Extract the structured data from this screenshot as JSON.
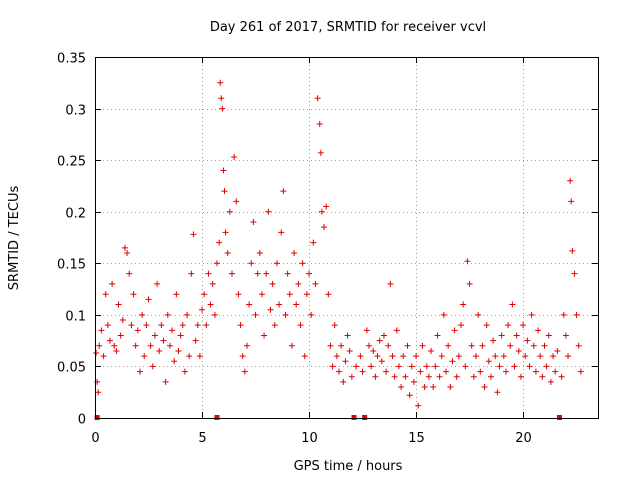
{
  "chart_data": {
    "type": "scatter",
    "title": "Day 261 of 2017, SRMTID for receiver vcvl",
    "xlabel": "GPS time / hours",
    "ylabel": "SRMTID / TECUs",
    "xlim": [
      0,
      23.5
    ],
    "ylim": [
      0,
      0.35
    ],
    "x_ticks": [
      0,
      5,
      10,
      15,
      20
    ],
    "x_tick_labels": [
      "0",
      "5",
      "10",
      "15",
      "20"
    ],
    "y_ticks": [
      0,
      0.05,
      0.1,
      0.15,
      0.2,
      0.25,
      0.3,
      0.35
    ],
    "y_tick_labels": [
      "0",
      "0.05",
      "0.1",
      "0.15",
      "0.2",
      "0.25",
      "0.3",
      "0.35"
    ],
    "grid": true,
    "marker": "+",
    "series_color": "#e00000",
    "gap_markers_x": [
      0.1,
      5.7,
      12.1,
      12.6,
      21.7
    ],
    "series": [
      {
        "name": "SRMTID",
        "points": [
          [
            0.05,
            0.063
          ],
          [
            0.1,
            0.035
          ],
          [
            0.15,
            0.025
          ],
          [
            0.2,
            0.07
          ],
          [
            0.3,
            0.085
          ],
          [
            0.4,
            0.06
          ],
          [
            0.5,
            0.12
          ],
          [
            0.6,
            0.09
          ],
          [
            0.7,
            0.075
          ],
          [
            0.8,
            0.13
          ],
          [
            0.9,
            0.07
          ],
          [
            1.0,
            0.065
          ],
          [
            1.1,
            0.11
          ],
          [
            1.2,
            0.08
          ],
          [
            1.3,
            0.095
          ],
          [
            1.4,
            0.165
          ],
          [
            1.5,
            0.16
          ],
          [
            1.6,
            0.14
          ],
          [
            1.7,
            0.09
          ],
          [
            1.8,
            0.12
          ],
          [
            1.9,
            0.07
          ],
          [
            2.0,
            0.085
          ],
          [
            2.1,
            0.045
          ],
          [
            2.2,
            0.1
          ],
          [
            2.3,
            0.06
          ],
          [
            2.4,
            0.09
          ],
          [
            2.5,
            0.115
          ],
          [
            2.6,
            0.07
          ],
          [
            2.7,
            0.05
          ],
          [
            2.8,
            0.08
          ],
          [
            2.9,
            0.13
          ],
          [
            3.0,
            0.065
          ],
          [
            3.1,
            0.09
          ],
          [
            3.2,
            0.075
          ],
          [
            3.3,
            0.035
          ],
          [
            3.4,
            0.1
          ],
          [
            3.5,
            0.07
          ],
          [
            3.6,
            0.085
          ],
          [
            3.7,
            0.055
          ],
          [
            3.8,
            0.12
          ],
          [
            3.9,
            0.065
          ],
          [
            4.0,
            0.08
          ],
          [
            4.1,
            0.09
          ],
          [
            4.2,
            0.045
          ],
          [
            4.3,
            0.1
          ],
          [
            4.4,
            0.06
          ],
          [
            4.5,
            0.14
          ],
          [
            4.6,
            0.178
          ],
          [
            4.7,
            0.075
          ],
          [
            4.8,
            0.09
          ],
          [
            4.9,
            0.06
          ],
          [
            5.0,
            0.105
          ],
          [
            5.1,
            0.12
          ],
          [
            5.2,
            0.09
          ],
          [
            5.3,
            0.14
          ],
          [
            5.4,
            0.11
          ],
          [
            5.5,
            0.13
          ],
          [
            5.6,
            0.1
          ],
          [
            5.7,
            0.15
          ],
          [
            5.8,
            0.17
          ],
          [
            5.85,
            0.325
          ],
          [
            5.9,
            0.31
          ],
          [
            5.95,
            0.3
          ],
          [
            6.0,
            0.24
          ],
          [
            6.05,
            0.22
          ],
          [
            6.1,
            0.18
          ],
          [
            6.2,
            0.16
          ],
          [
            6.3,
            0.2
          ],
          [
            6.4,
            0.14
          ],
          [
            6.5,
            0.253
          ],
          [
            6.6,
            0.21
          ],
          [
            6.7,
            0.12
          ],
          [
            6.8,
            0.09
          ],
          [
            6.9,
            0.06
          ],
          [
            7.0,
            0.045
          ],
          [
            7.1,
            0.07
          ],
          [
            7.2,
            0.11
          ],
          [
            7.3,
            0.15
          ],
          [
            7.4,
            0.19
          ],
          [
            7.5,
            0.1
          ],
          [
            7.6,
            0.14
          ],
          [
            7.7,
            0.16
          ],
          [
            7.8,
            0.12
          ],
          [
            7.9,
            0.08
          ],
          [
            8.0,
            0.14
          ],
          [
            8.1,
            0.2
          ],
          [
            8.2,
            0.105
          ],
          [
            8.3,
            0.13
          ],
          [
            8.4,
            0.09
          ],
          [
            8.5,
            0.15
          ],
          [
            8.6,
            0.11
          ],
          [
            8.7,
            0.18
          ],
          [
            8.8,
            0.22
          ],
          [
            8.9,
            0.1
          ],
          [
            9.0,
            0.14
          ],
          [
            9.1,
            0.12
          ],
          [
            9.2,
            0.07
          ],
          [
            9.3,
            0.16
          ],
          [
            9.4,
            0.11
          ],
          [
            9.5,
            0.13
          ],
          [
            9.6,
            0.09
          ],
          [
            9.7,
            0.15
          ],
          [
            9.8,
            0.06
          ],
          [
            9.9,
            0.12
          ],
          [
            10.0,
            0.14
          ],
          [
            10.1,
            0.1
          ],
          [
            10.2,
            0.17
          ],
          [
            10.3,
            0.13
          ],
          [
            10.4,
            0.31
          ],
          [
            10.5,
            0.285
          ],
          [
            10.55,
            0.257
          ],
          [
            10.6,
            0.2
          ],
          [
            10.7,
            0.185
          ],
          [
            10.8,
            0.205
          ],
          [
            10.9,
            0.12
          ],
          [
            11.0,
            0.07
          ],
          [
            11.1,
            0.05
          ],
          [
            11.2,
            0.09
          ],
          [
            11.3,
            0.06
          ],
          [
            11.4,
            0.045
          ],
          [
            11.5,
            0.07
          ],
          [
            11.6,
            0.035
          ],
          [
            11.7,
            0.055
          ],
          [
            11.8,
            0.08
          ],
          [
            11.9,
            0.065
          ],
          [
            12.0,
            0.04
          ],
          [
            12.2,
            0.05
          ],
          [
            12.4,
            0.06
          ],
          [
            12.5,
            0.045
          ],
          [
            12.7,
            0.085
          ],
          [
            12.8,
            0.07
          ],
          [
            12.9,
            0.05
          ],
          [
            13.0,
            0.065
          ],
          [
            13.1,
            0.04
          ],
          [
            13.2,
            0.06
          ],
          [
            13.3,
            0.075
          ],
          [
            13.4,
            0.055
          ],
          [
            13.5,
            0.08
          ],
          [
            13.6,
            0.045
          ],
          [
            13.7,
            0.07
          ],
          [
            13.8,
            0.13
          ],
          [
            13.9,
            0.06
          ],
          [
            14.0,
            0.04
          ],
          [
            14.1,
            0.085
          ],
          [
            14.2,
            0.05
          ],
          [
            14.3,
            0.03
          ],
          [
            14.4,
            0.06
          ],
          [
            14.5,
            0.04
          ],
          [
            14.6,
            0.07
          ],
          [
            14.7,
            0.022
          ],
          [
            14.8,
            0.05
          ],
          [
            14.9,
            0.035
          ],
          [
            15.0,
            0.06
          ],
          [
            15.1,
            0.012
          ],
          [
            15.2,
            0.045
          ],
          [
            15.3,
            0.07
          ],
          [
            15.4,
            0.03
          ],
          [
            15.5,
            0.05
          ],
          [
            15.6,
            0.04
          ],
          [
            15.7,
            0.065
          ],
          [
            15.8,
            0.03
          ],
          [
            15.9,
            0.05
          ],
          [
            16.0,
            0.08
          ],
          [
            16.1,
            0.04
          ],
          [
            16.2,
            0.06
          ],
          [
            16.3,
            0.1
          ],
          [
            16.4,
            0.045
          ],
          [
            16.5,
            0.07
          ],
          [
            16.6,
            0.03
          ],
          [
            16.7,
            0.055
          ],
          [
            16.8,
            0.085
          ],
          [
            16.9,
            0.04
          ],
          [
            17.0,
            0.06
          ],
          [
            17.1,
            0.09
          ],
          [
            17.2,
            0.11
          ],
          [
            17.3,
            0.05
          ],
          [
            17.4,
            0.152
          ],
          [
            17.5,
            0.13
          ],
          [
            17.6,
            0.07
          ],
          [
            17.7,
            0.04
          ],
          [
            17.8,
            0.06
          ],
          [
            17.9,
            0.1
          ],
          [
            18.0,
            0.045
          ],
          [
            18.1,
            0.07
          ],
          [
            18.2,
            0.03
          ],
          [
            18.3,
            0.09
          ],
          [
            18.4,
            0.055
          ],
          [
            18.5,
            0.04
          ],
          [
            18.6,
            0.075
          ],
          [
            18.7,
            0.06
          ],
          [
            18.8,
            0.025
          ],
          [
            18.9,
            0.05
          ],
          [
            19.0,
            0.08
          ],
          [
            19.1,
            0.06
          ],
          [
            19.2,
            0.045
          ],
          [
            19.3,
            0.09
          ],
          [
            19.4,
            0.07
          ],
          [
            19.5,
            0.11
          ],
          [
            19.6,
            0.05
          ],
          [
            19.7,
            0.08
          ],
          [
            19.8,
            0.065
          ],
          [
            19.9,
            0.04
          ],
          [
            20.0,
            0.09
          ],
          [
            20.1,
            0.06
          ],
          [
            20.2,
            0.075
          ],
          [
            20.3,
            0.05
          ],
          [
            20.4,
            0.1
          ],
          [
            20.5,
            0.07
          ],
          [
            20.6,
            0.045
          ],
          [
            20.7,
            0.085
          ],
          [
            20.8,
            0.06
          ],
          [
            20.9,
            0.04
          ],
          [
            21.0,
            0.07
          ],
          [
            21.1,
            0.05
          ],
          [
            21.2,
            0.08
          ],
          [
            21.3,
            0.035
          ],
          [
            21.4,
            0.06
          ],
          [
            21.5,
            0.045
          ],
          [
            21.6,
            0.065
          ],
          [
            21.8,
            0.04
          ],
          [
            21.9,
            0.1
          ],
          [
            22.0,
            0.08
          ],
          [
            22.1,
            0.06
          ],
          [
            22.2,
            0.23
          ],
          [
            22.25,
            0.21
          ],
          [
            22.3,
            0.162
          ],
          [
            22.4,
            0.14
          ],
          [
            22.5,
            0.1
          ],
          [
            22.6,
            0.07
          ],
          [
            22.7,
            0.045
          ]
        ]
      }
    ]
  }
}
